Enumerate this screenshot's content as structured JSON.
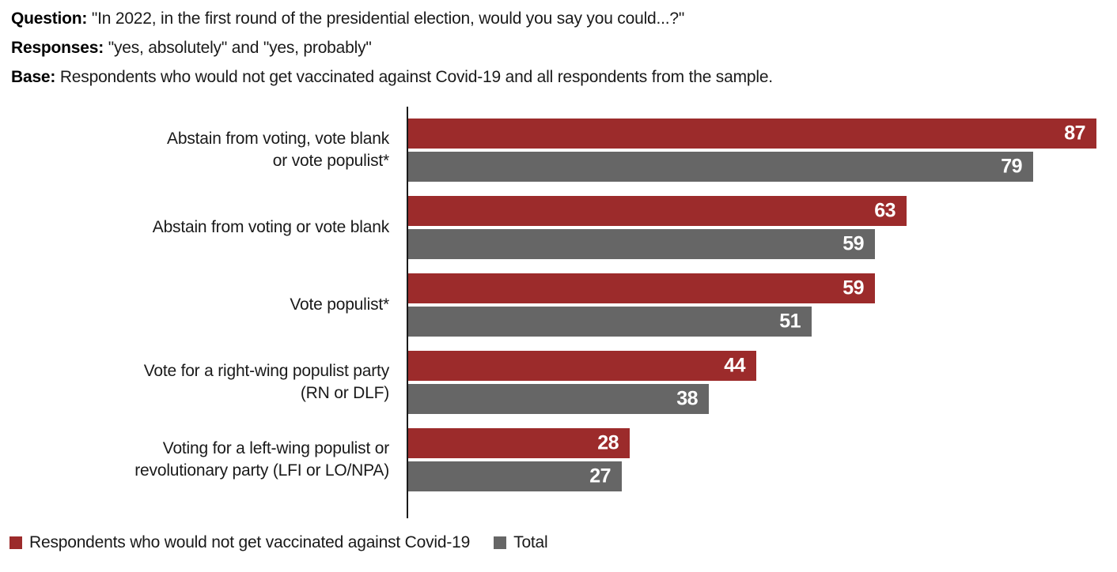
{
  "header": {
    "lines": [
      {
        "label": "Question:",
        "text": "\"In 2022, in the first round of the presidential election, would you say you could...?\""
      },
      {
        "label": "Responses:",
        "text": "\"yes, absolutely\" and \"yes, probably\""
      },
      {
        "label": "Base:",
        "text": "Respondents who would not get vaccinated against Covid-19 and all respondents from the sample."
      }
    ]
  },
  "chart_data": {
    "type": "bar",
    "orientation": "horizontal",
    "title": "",
    "xlabel": "",
    "ylabel": "",
    "xlim": [
      0,
      100
    ],
    "grid": false,
    "value_labels": "inside-end, white bold",
    "legend_position": "bottom-left",
    "categories": [
      "Abstain from voting, vote blank\nor vote populist*",
      "Abstain from voting or vote blank",
      "Vote populist*",
      "Vote for a right-wing populist party\n(RN or DLF)",
      "Voting for a left-wing populist or\nrevolutionary party (LFI or LO/NPA)"
    ],
    "series": [
      {
        "name": "Respondents who would not get vaccinated against Covid-19",
        "color": "#9C2B2B",
        "values": [
          87,
          63,
          59,
          44,
          28
        ]
      },
      {
        "name": "Total",
        "color": "#666666",
        "values": [
          79,
          59,
          51,
          38,
          27
        ]
      }
    ]
  },
  "colors": {
    "axis": "#1a1a1a",
    "text": "#1a1a1a",
    "value_label": "#ffffff",
    "background": "#ffffff"
  }
}
